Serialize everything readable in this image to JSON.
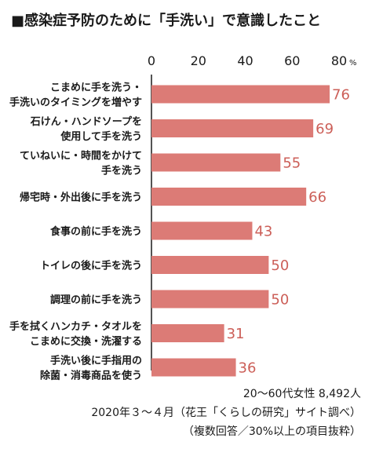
{
  "title": "■感染症予防のために「手洗い」で意識したこと",
  "chart_data": {
    "type": "bar",
    "orientation": "horizontal",
    "title": "■感染症予防のために「手洗い」で意識したこと",
    "categories": [
      [
        "こまめに手を洗う・",
        "手洗いのタイミングを増やす"
      ],
      [
        "石けん・ハンドソープを",
        "使用して手を洗う"
      ],
      [
        "ていねいに・時間をかけて",
        "手を洗う"
      ],
      [
        "帰宅時・外出後に手を洗う"
      ],
      [
        "食事の前に手を洗う"
      ],
      [
        "トイレの後に手を洗う"
      ],
      [
        "調理の前に手を洗う"
      ],
      [
        "手を拭くハンカチ・タオルを",
        "こまめに交換・洗濯する"
      ],
      [
        "手洗い後に手指用の",
        "除菌・消毒商品を使う"
      ]
    ],
    "values": [
      76,
      69,
      55,
      66,
      43,
      50,
      50,
      31,
      36
    ],
    "x_ticks": [
      "0",
      "20",
      "40",
      "60",
      "80"
    ],
    "x_unit": "%",
    "xlim": [
      0,
      80
    ],
    "grid": false,
    "bar_color": "#dc7b76",
    "value_label_color": "#cc5f58"
  },
  "notes": [
    "20〜60代女性 8,492人",
    "2020年３〜４月（花王「くらしの研究」サイト調べ）",
    "（複数回答／30%以上の項目抜粋）"
  ]
}
